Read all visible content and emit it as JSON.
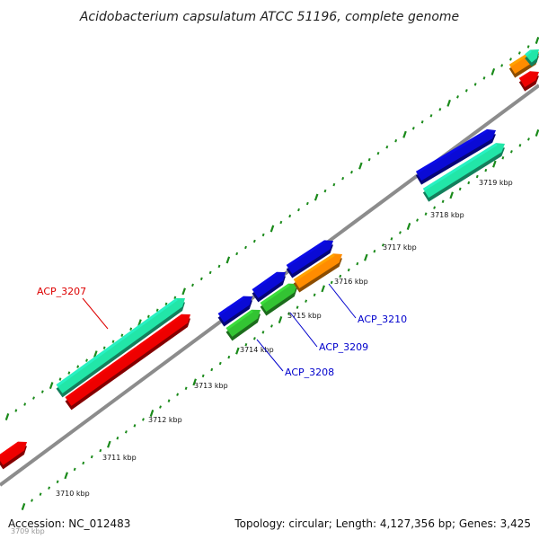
{
  "title": "Acidobacterium capsulatum ATCC 51196, complete genome",
  "footer": {
    "accession": "Accession: NC_012483",
    "summary": "Topology: circular; Length: 4,127,356 bp; Genes: 3,425"
  },
  "colors": {
    "backbone": "#8c8c8c",
    "tick": "#1a8a1a",
    "red": "#ee0000",
    "mint": "#22e6a8",
    "blue": "#0a0ad6",
    "green": "#33c433",
    "orange": "#ff8c00",
    "label_red": "#dd0000",
    "label_blue": "#0000cc"
  },
  "kbp_labels": [
    "3709 kbp",
    "3710 kbp",
    "3711 kbp",
    "3712 kbp",
    "3713 kbp",
    "3714 kbp",
    "3715 kbp",
    "3716 kbp",
    "3717 kbp",
    "3718 kbp",
    "3719 kbp"
  ],
  "gene_labels": [
    {
      "id": "ACP_3207",
      "color": "label_red"
    },
    {
      "id": "ACP_3208",
      "color": "label_blue"
    },
    {
      "id": "ACP_3209",
      "color": "label_blue"
    },
    {
      "id": "ACP_3210",
      "color": "label_blue"
    }
  ]
}
